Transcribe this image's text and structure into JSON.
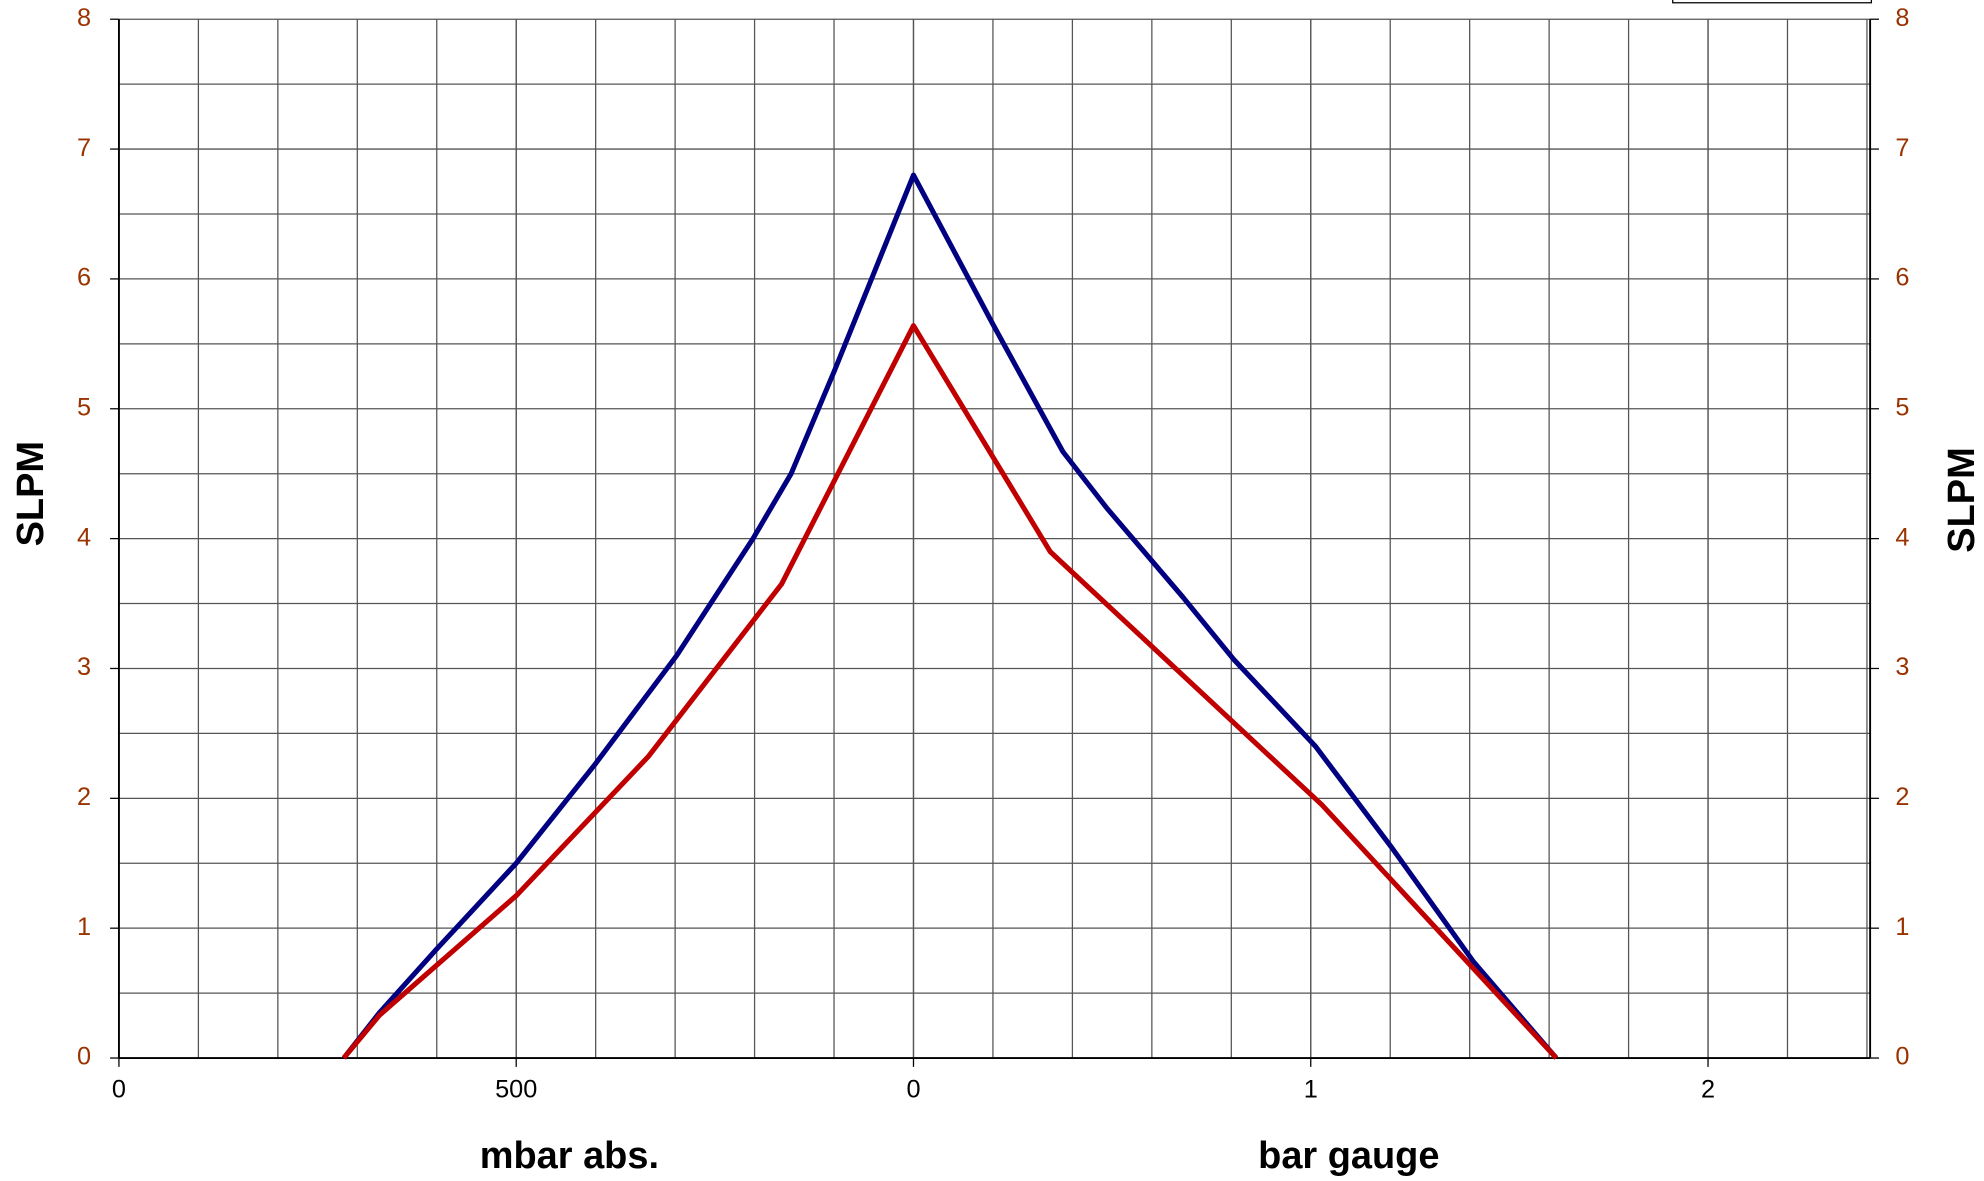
{
  "chart_data": {
    "type": "line",
    "y_title": "SLPM",
    "y2_title": "SLPM",
    "x_title_left": "mbar abs.",
    "x_title_right": "bar gauge",
    "xlim": [
      0,
      2204
    ],
    "ylim": [
      0,
      8
    ],
    "xticks": [
      {
        "value": 0,
        "label": "0"
      },
      {
        "value": 500,
        "label": "500"
      },
      {
        "value": 1000,
        "label": "0"
      },
      {
        "value": 1500,
        "label": "1"
      },
      {
        "value": 2000,
        "label": "2"
      }
    ],
    "yticks": [
      0,
      1,
      2,
      3,
      4,
      5,
      6,
      7,
      8
    ],
    "grid": true,
    "series": [
      {
        "color": "#000080",
        "x": [
          283,
          328,
          400,
          500,
          599,
          702,
          798,
          846,
          901,
          1000,
          1100,
          1188,
          1244,
          1339,
          1403,
          1506,
          1602,
          1705,
          1809
        ],
        "values": [
          0,
          0.35,
          0.84,
          1.5,
          2.26,
          3.1,
          4.0,
          4.5,
          5.3,
          6.8,
          5.65,
          4.67,
          4.23,
          3.55,
          3.07,
          2.4,
          1.62,
          0.74,
          0
        ]
      },
      {
        "color": "#c00000",
        "x": [
          283,
          328,
          500,
          666,
          834,
          1000,
          1172,
          1514,
          1809
        ],
        "values": [
          0,
          0.33,
          1.25,
          2.32,
          3.65,
          5.64,
          3.9,
          1.95,
          0
        ]
      }
    ]
  }
}
